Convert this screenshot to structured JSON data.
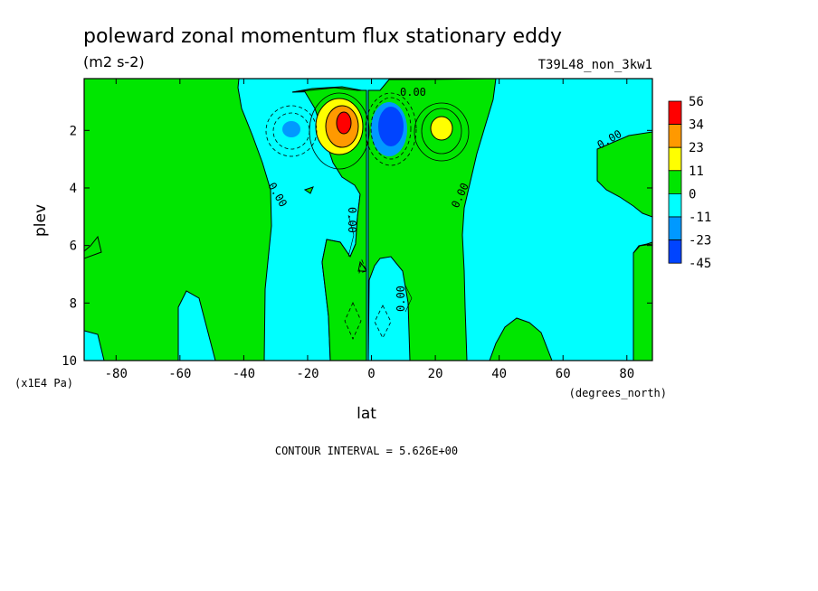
{
  "chart_data": {
    "type": "heatmap",
    "title": "poleward zonal momentum flux stationary eddy",
    "units": "(m2 s-2)",
    "run_label": "T39L48_non_3kw1",
    "xlabel": "lat",
    "x_units": "(degrees_north)",
    "ylabel": "plev",
    "y_units": "(x1E4 Pa)",
    "xlim": [
      -90,
      88
    ],
    "ylim": [
      10,
      0.2
    ],
    "x_ticks": [
      -80,
      -60,
      -40,
      -20,
      0,
      20,
      40,
      60,
      80
    ],
    "y_ticks": [
      2,
      4,
      6,
      8,
      10
    ],
    "contour_interval_text": "CONTOUR INTERVAL = 5.626E+00",
    "contour_label": "0.00",
    "colorbar": {
      "levels": [
        "56",
        "34",
        "23",
        "11",
        "0",
        "-11",
        "-23",
        "-45"
      ],
      "colors": [
        "#ff0000",
        "#ff9900",
        "#ffff00",
        "#00e600",
        "#00ffff",
        "#0099ff",
        "#0044ff"
      ]
    },
    "features": [
      {
        "lat": -8,
        "plev": 1.7,
        "value": 56,
        "sign": "positive"
      },
      {
        "lat": 7,
        "plev": 1.8,
        "value": -45,
        "sign": "negative"
      },
      {
        "lat": 23,
        "plev": 2.0,
        "value": 23,
        "sign": "positive"
      },
      {
        "lat": -23,
        "plev": 2.0,
        "value": -23,
        "sign": "negative"
      }
    ]
  }
}
